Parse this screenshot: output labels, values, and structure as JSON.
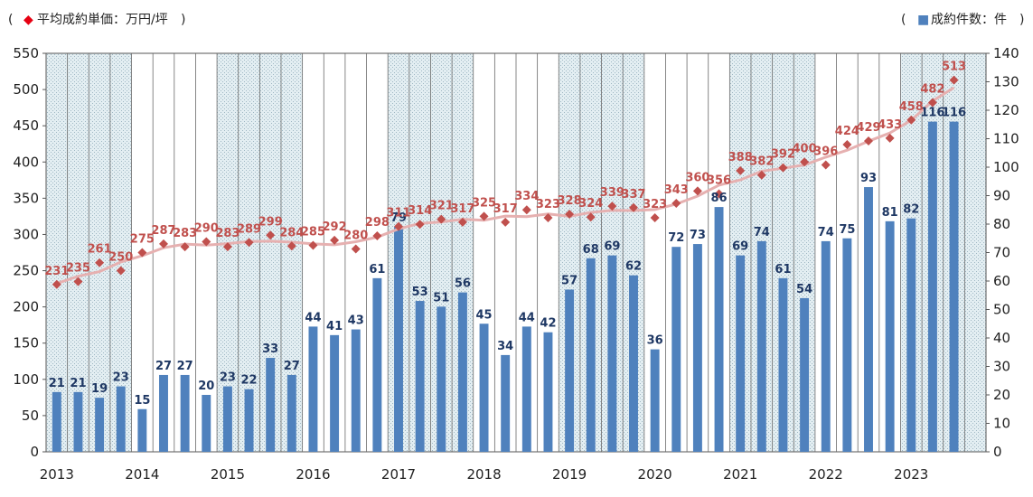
{
  "chart_data": {
    "type": "bar",
    "legend": {
      "left": {
        "open": "(",
        "marker": "◆",
        "label": "平均成約単価：万円/坪",
        "close": ")"
      },
      "right": {
        "open": "(",
        "marker": "■",
        "label": "成約件数：件",
        "close": ")"
      }
    },
    "left_axis": {
      "range": [
        0,
        550
      ],
      "ticks": [
        "0",
        "50",
        "100",
        "150",
        "200",
        "250",
        "300",
        "350",
        "400",
        "450",
        "500",
        "550"
      ]
    },
    "right_axis": {
      "range": [
        0,
        140
      ],
      "ticks": [
        "0",
        "10",
        "20",
        "30",
        "40",
        "50",
        "60",
        "70",
        "80",
        "90",
        "100",
        "110",
        "120",
        "130",
        "140"
      ]
    },
    "years": [
      "2013",
      "2014",
      "2015",
      "2016",
      "2017",
      "2018",
      "2019",
      "2020",
      "2021",
      "2022",
      "2023"
    ],
    "shaded_years": [
      "2013",
      "2015",
      "2017",
      "2019",
      "2021",
      "2023"
    ],
    "series": [
      {
        "name": "成約件数：件",
        "type": "bar",
        "axis": "right",
        "color": "#4f81bd",
        "values": [
          21,
          21,
          19,
          23,
          15,
          27,
          27,
          20,
          23,
          22,
          33,
          27,
          44,
          41,
          43,
          61,
          79,
          53,
          51,
          56,
          45,
          34,
          44,
          42,
          57,
          68,
          69,
          62,
          36,
          72,
          73,
          86,
          69,
          74,
          61,
          54,
          74,
          75,
          93,
          81,
          82,
          116,
          116
        ]
      },
      {
        "name": "平均成約単価：万円/坪",
        "type": "scatter",
        "axis": "left",
        "color": "#c0504d",
        "values": [
          231,
          235,
          261,
          250,
          275,
          287,
          283,
          290,
          283,
          289,
          299,
          284,
          285,
          292,
          280,
          298,
          311,
          314,
          321,
          317,
          325,
          317,
          334,
          323,
          328,
          324,
          339,
          337,
          323,
          343,
          360,
          356,
          388,
          382,
          392,
          400,
          396,
          424,
          429,
          433,
          458,
          482,
          513
        ]
      }
    ],
    "trend_line": {
      "color": "#e6b0b0"
    }
  }
}
